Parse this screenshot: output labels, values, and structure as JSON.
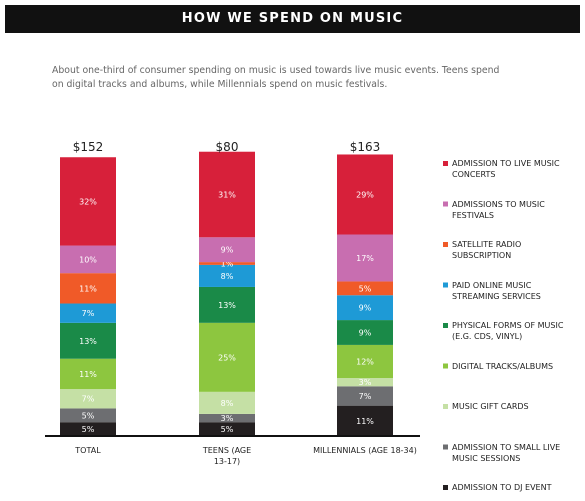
{
  "chart_data": {
    "type": "stacked_bar",
    "title": "HOW WE SPEND ON MUSIC",
    "subtitle": "About one-third of consumer spending on music is used towards live music events. Teens spend on digital tracks and albums, while Millennials spend on music festivals.",
    "categories": [
      "TOTAL",
      "TEENS (AGE 13-17)",
      "MILLENNIALS (AGE 18-34)"
    ],
    "totals": {
      "values": [
        152,
        80,
        163
      ],
      "value_labels": [
        "$152",
        "$80",
        "$163"
      ]
    },
    "ylim": [
      0,
      100
    ],
    "series": [
      {
        "name": "ADMISSION TO DJ EVENT",
        "color": "#231f20",
        "values": [
          5,
          5,
          11
        ],
        "value_labels": [
          "5%",
          "5%",
          "11%"
        ]
      },
      {
        "name": "ADMISSION TO SMALL LIVE MUSIC SESSIONS",
        "color": "#6d6e71",
        "values": [
          5,
          3,
          7
        ],
        "value_labels": [
          "5%",
          "3%",
          "7%"
        ]
      },
      {
        "name": "MUSIC GIFT CARDS",
        "color": "#c5e0a5",
        "values": [
          7,
          8,
          3
        ],
        "value_labels": [
          "7%",
          "8%",
          "3%"
        ]
      },
      {
        "name": "DIGITAL TRACKS/ALBUMS",
        "color": "#8dc63f",
        "values": [
          11,
          25,
          12
        ],
        "value_labels": [
          "11%",
          "25%",
          "12%"
        ]
      },
      {
        "name": "PHYSICAL FORMS OF MUSIC (E.G.  CDS, VINYL)",
        "color": "#1a8a48",
        "values": [
          13,
          13,
          9
        ],
        "value_labels": [
          "13%",
          "13%",
          "9%"
        ]
      },
      {
        "name": "PAID ONLINE MUSIC STREAMING SERVICES",
        "color": "#1e9ad6",
        "values": [
          7,
          8,
          9
        ],
        "value_labels": [
          "7%",
          "8%",
          "9%"
        ]
      },
      {
        "name": "SATELLITE RADIO SUBSCRIPTION",
        "color": "#f05a28",
        "values": [
          11,
          1,
          5
        ],
        "value_labels": [
          "11%",
          "1%",
          "5%"
        ]
      },
      {
        "name": "ADMISSIONS TO MUSIC FESTIVALS",
        "color": "#c86eb0",
        "values": [
          10,
          9,
          17
        ],
        "value_labels": [
          "10%",
          "9%",
          "17%"
        ]
      },
      {
        "name": "ADMISSION TO LIVE MUSIC CONCERTS",
        "color": "#d7203a",
        "values": [
          32,
          31,
          29
        ],
        "value_labels": [
          "32%",
          "31%",
          "29%"
        ]
      }
    ]
  }
}
